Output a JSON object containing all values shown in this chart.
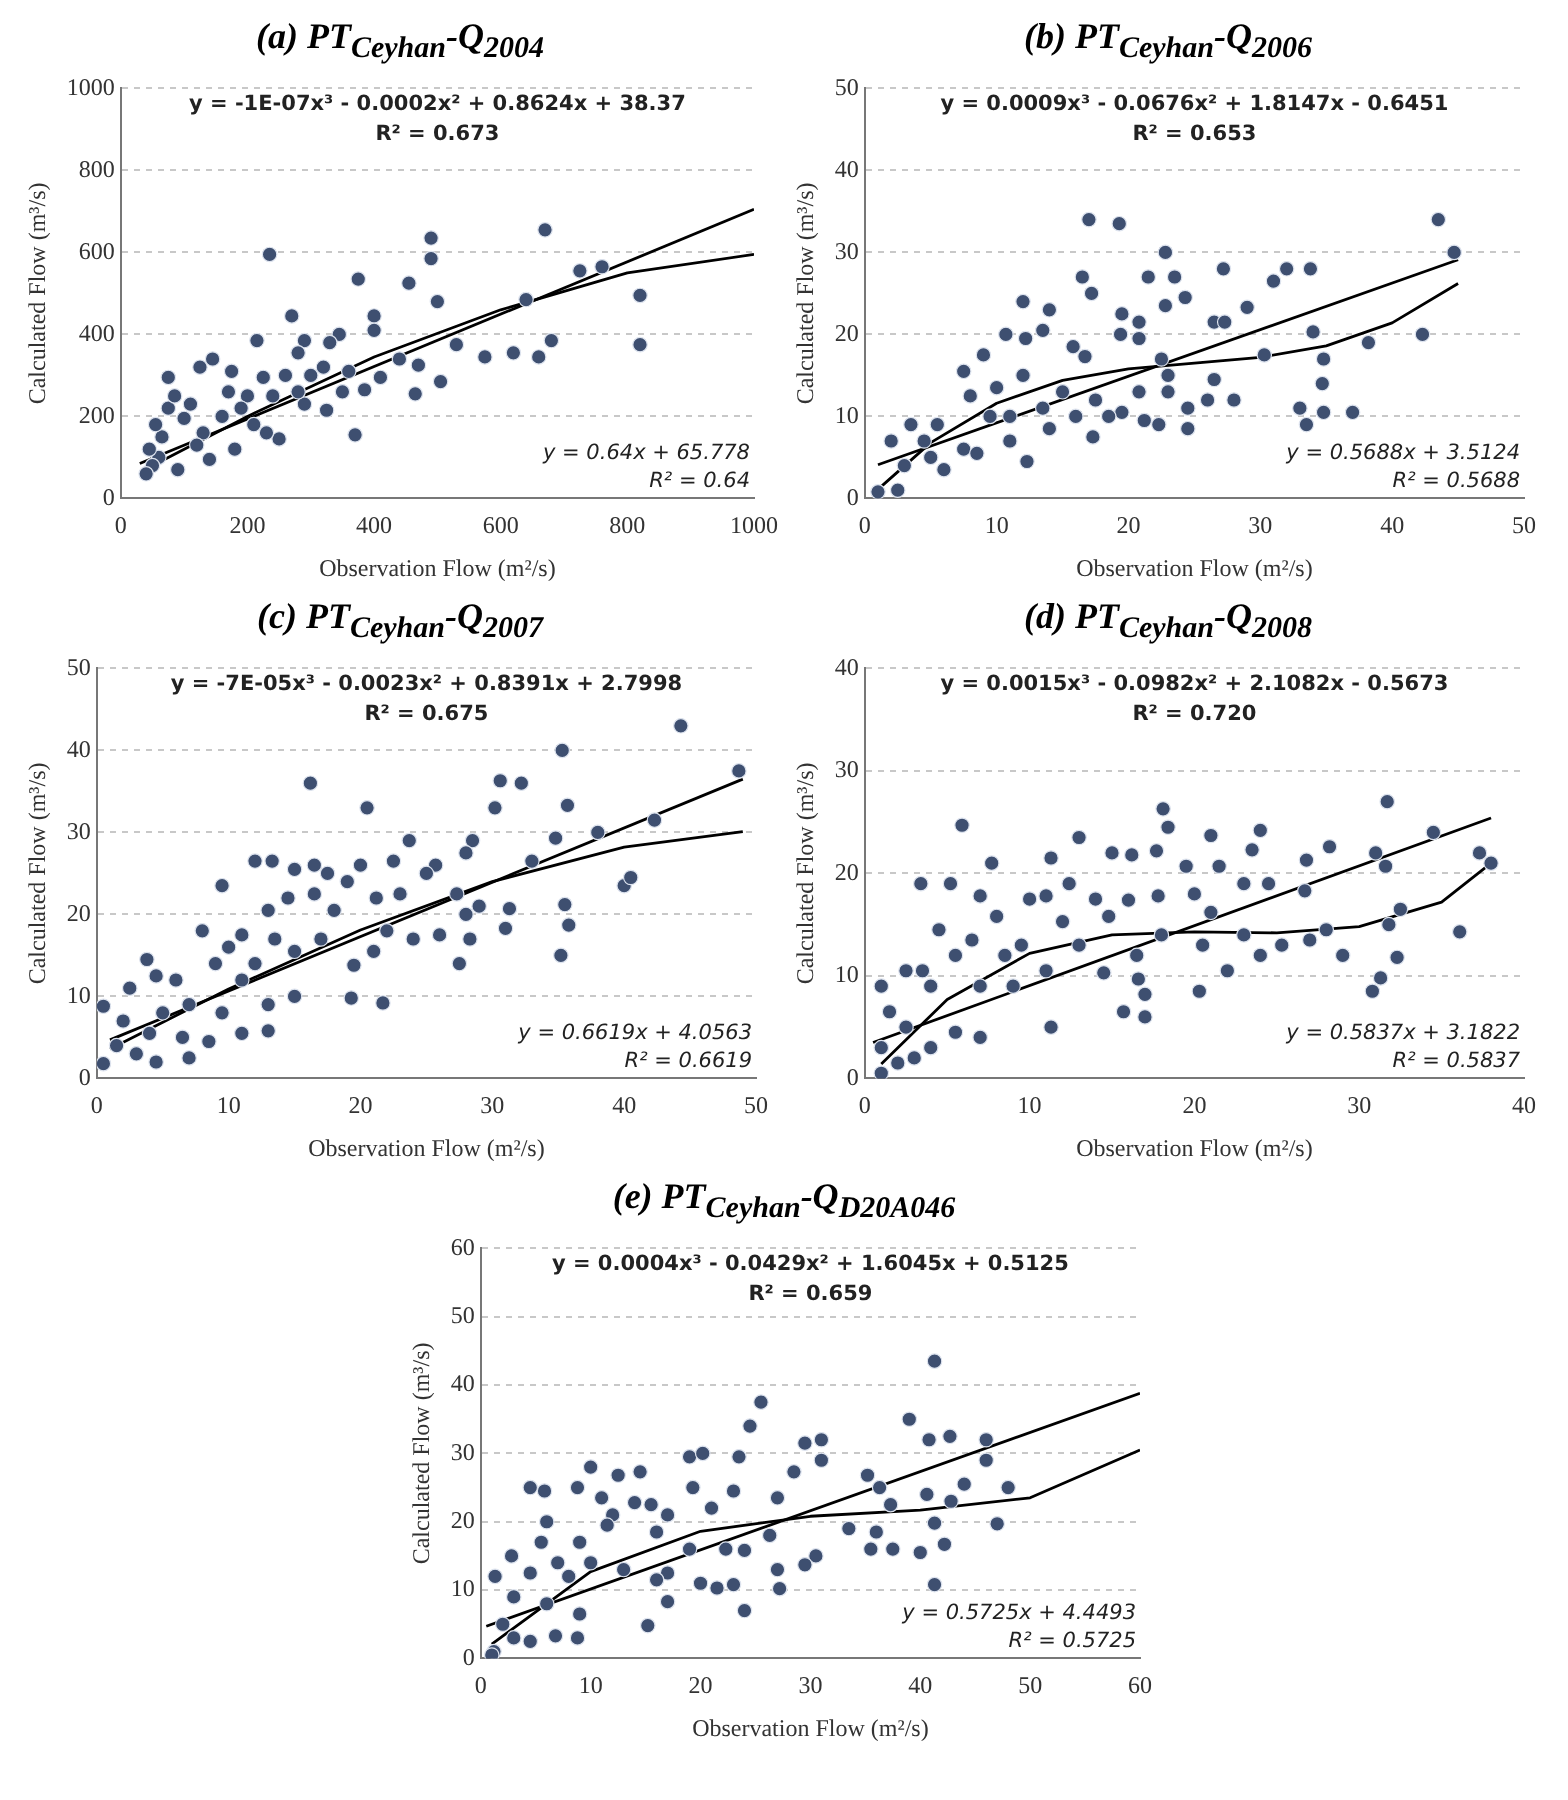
{
  "chart_data": [
    {
      "type": "scatter",
      "title": "(a) PT$_{Ceyhan}$-Q$_{2004}$",
      "xlabel": "Observation Flow (m²/s)",
      "ylabel": "Calculated Flow (m³/s)",
      "xlim": [
        0,
        1000
      ],
      "ylim": [
        0,
        1000
      ],
      "xticks": [
        0,
        200,
        400,
        600,
        800,
        1000
      ],
      "yticks": [
        0,
        200,
        400,
        600,
        800,
        1000
      ],
      "grid": "y",
      "marker": "circle",
      "annotations": [
        "y = -1E-07x³ - 0.0002x² + 0.8624x + 38.37",
        "R² = 0.673",
        "y = 0.64x + 65.778",
        "R² = 0.64"
      ],
      "series": [
        {
          "type": "scatter",
          "color": "#3e4f70",
          "x": [
            235,
            490,
            490,
            670,
            375,
            455,
            500,
            400,
            400,
            270,
            640,
            725,
            760,
            820,
            820,
            680,
            660,
            620,
            575,
            530,
            505,
            465,
            470,
            410,
            385,
            370,
            345,
            325,
            290,
            280,
            290,
            250,
            215,
            225,
            175,
            145,
            140,
            125,
            110,
            100,
            75,
            75,
            65,
            60,
            50,
            45,
            90,
            160,
            180,
            200,
            240,
            260,
            300,
            330,
            350,
            210,
            130,
            170,
            40,
            55,
            85,
            120,
            190,
            230,
            280,
            320,
            440,
            360
          ],
          "values": [
            595,
            635,
            585,
            655,
            535,
            525,
            480,
            445,
            410,
            445,
            485,
            555,
            565,
            495,
            375,
            385,
            345,
            355,
            345,
            375,
            285,
            255,
            325,
            295,
            265,
            155,
            400,
            215,
            385,
            355,
            230,
            145,
            385,
            295,
            310,
            340,
            95,
            320,
            230,
            195,
            295,
            220,
            150,
            100,
            80,
            120,
            70,
            200,
            120,
            250,
            250,
            300,
            300,
            380,
            260,
            180,
            160,
            260,
            60,
            180,
            250,
            130,
            220,
            160,
            260,
            320,
            340,
            310
          ]
        },
        {
          "type": "line",
          "color": "#000000",
          "marker": "none",
          "x": [
            30,
            1000
          ],
          "values": [
            85,
            705
          ]
        },
        {
          "type": "line",
          "color": "#000000",
          "marker": "none",
          "x": [
            30,
            200,
            400,
            600,
            800,
            1000
          ],
          "values": [
            64,
            200,
            345,
            460,
            550,
            595
          ]
        }
      ]
    },
    {
      "type": "scatter",
      "title": "(b) PT$_{Ceyhan}$-Q$_{2006}$",
      "xlabel": "Observation Flow (m²/s)",
      "ylabel": "Calculated Flow (m³/s)",
      "xlim": [
        0,
        50
      ],
      "ylim": [
        0,
        50
      ],
      "xticks": [
        0,
        10,
        20,
        30,
        40,
        50
      ],
      "yticks": [
        0,
        10,
        20,
        30,
        40,
        50
      ],
      "grid": "y",
      "marker": "circle",
      "annotations": [
        "y = 0.0009x³ - 0.0676x² + 1.8147x - 0.6451",
        "R² = 0.653",
        "y = 0.5688x + 3.5124",
        "R² = 0.5688"
      ],
      "series": [
        {
          "type": "scatter",
          "color": "#3e4f70",
          "x": [
            17,
            19.3,
            43.5,
            44.7,
            22.8,
            16.5,
            21.5,
            23.5,
            27.2,
            31,
            32,
            33.8,
            17.2,
            24.3,
            29,
            22.8,
            12,
            14,
            19.5,
            20.8,
            26.5,
            27.3,
            34,
            42.3,
            19.4,
            20.8,
            13.5,
            10.7,
            12.2,
            38.2,
            9,
            7.5,
            15.8,
            16.7,
            22.5,
            30.3,
            34.8,
            12,
            23,
            26.5,
            34.7,
            15,
            20.8,
            23,
            10,
            8,
            17.5,
            26,
            28,
            13.5,
            19.5,
            24.5,
            33,
            34.8,
            37,
            5.5,
            3.5,
            9.5,
            11,
            16,
            18.5,
            21.2,
            22.3,
            33.5,
            14,
            24.5,
            17.3,
            4.5,
            2,
            7.5,
            11,
            12.3,
            6,
            8.5,
            2.5,
            1,
            3,
            5
          ],
          "values": [
            34,
            33.5,
            34,
            30,
            30,
            27,
            27,
            27,
            28,
            26.5,
            28,
            28,
            25,
            24.5,
            23.3,
            23.5,
            24,
            23,
            22.5,
            21.5,
            21.5,
            21.5,
            20.3,
            20,
            20,
            19.5,
            20.5,
            20,
            19.5,
            19,
            17.5,
            15.5,
            18.5,
            17.3,
            17,
            17.5,
            17,
            15,
            15,
            14.5,
            14,
            13,
            13,
            13,
            13.5,
            12.5,
            12,
            12,
            12,
            11,
            10.5,
            11,
            11,
            10.5,
            10.5,
            9,
            9,
            10,
            10,
            10,
            10,
            9.5,
            9,
            9,
            8.5,
            8.5,
            7.5,
            7,
            7,
            6,
            7,
            4.5,
            3.5,
            5.5,
            1,
            0.8,
            4,
            5
          ]
        },
        {
          "type": "line",
          "color": "#000000",
          "marker": "none",
          "x": [
            1,
            45
          ],
          "values": [
            4.1,
            29.1
          ]
        },
        {
          "type": "line",
          "color": "#000000",
          "marker": "none",
          "x": [
            1,
            5,
            10,
            15,
            20,
            25,
            30,
            35,
            40,
            45
          ],
          "values": [
            1.1,
            6.8,
            11.6,
            14.4,
            15.8,
            16.5,
            17.2,
            18.6,
            21.4,
            26.2
          ]
        }
      ]
    },
    {
      "type": "scatter",
      "title": "(c) PT$_{Ceyhan}$-Q$_{2007}$",
      "xlabel": "Observation Flow (m²/s)",
      "ylabel": "Calculated Flow (m³/s)",
      "xlim": [
        0,
        50
      ],
      "ylim": [
        0,
        50
      ],
      "xticks": [
        0,
        10,
        20,
        30,
        40,
        50
      ],
      "yticks": [
        0,
        10,
        20,
        30,
        40,
        50
      ],
      "grid": "y",
      "marker": "circle",
      "annotations": [
        "y = -7E-05x³ - 0.0023x² + 0.8391x + 2.7998",
        "R² = 0.675",
        "y = 0.6619x + 4.0563",
        "R² = 0.6619"
      ],
      "series": [
        {
          "type": "scatter",
          "color": "#3e4f70",
          "x": [
            44.3,
            35.3,
            48.7,
            16.2,
            30.6,
            32.2,
            35.7,
            20.5,
            30.2,
            42.3,
            38,
            28.5,
            23.7,
            34.8,
            28,
            12,
            13.3,
            16.5,
            20,
            22.5,
            25.7,
            33,
            15,
            17.5,
            25,
            9.5,
            19,
            40,
            40.5,
            14.5,
            16.5,
            21.2,
            23,
            27.3,
            29,
            35.5,
            31.3,
            13,
            18,
            28,
            8,
            11,
            22,
            26,
            31,
            35.8,
            13.5,
            17,
            24,
            28.3,
            10,
            15,
            21,
            35.2,
            27.5,
            3.8,
            9,
            12,
            19.5,
            6,
            4.5,
            11,
            15,
            21.7,
            19.3,
            2.5,
            9.5,
            7,
            13,
            5,
            0.5,
            2,
            4,
            6.5,
            11,
            13,
            8.5,
            3,
            4.5,
            7,
            0.5,
            1.5
          ],
          "values": [
            43,
            40,
            37.5,
            36,
            36.3,
            36,
            33.3,
            33,
            33,
            31.5,
            30,
            29,
            29,
            29.3,
            27.5,
            26.5,
            26.5,
            26,
            26,
            26.5,
            26,
            26.5,
            25.5,
            25,
            25,
            23.5,
            24,
            23.5,
            24.5,
            22,
            22.5,
            22,
            22.5,
            22.5,
            21,
            21.2,
            20.7,
            20.5,
            20.5,
            20,
            18,
            17.5,
            18,
            17.5,
            18.3,
            18.7,
            17,
            17,
            17,
            17,
            16,
            15.5,
            15.5,
            15,
            14,
            14.5,
            14,
            14,
            13.8,
            12,
            12.5,
            12,
            10,
            9.2,
            9.8,
            11,
            8,
            9,
            9,
            8,
            8.8,
            7,
            5.5,
            5,
            5.5,
            5.8,
            4.5,
            3,
            2,
            2.5,
            1.8,
            4
          ]
        },
        {
          "type": "line",
          "color": "#000000",
          "marker": "none",
          "x": [
            1,
            49
          ],
          "values": [
            4.7,
            36.5
          ]
        },
        {
          "type": "line",
          "color": "#000000",
          "marker": "none",
          "x": [
            1,
            10,
            20,
            30,
            40,
            49
          ],
          "values": [
            3.6,
            10.9,
            18.1,
            24,
            28.2,
            30.1
          ]
        }
      ]
    },
    {
      "type": "scatter",
      "title": "(d) PT$_{Ceyhan}$-Q$_{2008}$",
      "xlabel": "Observation Flow (m²/s)",
      "ylabel": "Calculated Flow (m³/s)",
      "xlim": [
        0,
        40
      ],
      "ylim": [
        0,
        40
      ],
      "xticks": [
        0,
        10,
        20,
        30,
        40
      ],
      "yticks": [
        0,
        10,
        20,
        30,
        40
      ],
      "grid": "y",
      "marker": "circle",
      "annotations": [
        "y = 0.0015x³ - 0.0982x² + 2.1082x - 0.5673",
        "R² = 0.720",
        "y = 0.5837x + 3.1822",
        "R² = 0.5837"
      ],
      "series": [
        {
          "type": "scatter",
          "color": "#3e4f70",
          "x": [
            31.7,
            18.1,
            5.9,
            18.4,
            24,
            34.5,
            13,
            21,
            23.5,
            28.2,
            37.3,
            31,
            11.3,
            15,
            16.2,
            17.7,
            7.7,
            19.5,
            21.5,
            26.8,
            31.6,
            38,
            3.4,
            5.2,
            12.4,
            23,
            24.5,
            10,
            7,
            14,
            16,
            20,
            26.7,
            11,
            17.8,
            4.5,
            8,
            12,
            14.8,
            21,
            28,
            32.5,
            31.8,
            6.5,
            9.5,
            13,
            18,
            20.5,
            23,
            27,
            5.5,
            8.5,
            16.5,
            24,
            25.3,
            29,
            32.3,
            36.1,
            2.5,
            3.5,
            11,
            14.5,
            22,
            31.3,
            30.8,
            20.3,
            16.6,
            17,
            4,
            1,
            7,
            9,
            15.7,
            17,
            11.3,
            7,
            5.5,
            4,
            2.5,
            1.5,
            1,
            2,
            1,
            3
          ],
          "values": [
            27,
            26.3,
            24.7,
            24.5,
            24.2,
            24,
            23.5,
            23.7,
            22.3,
            22.6,
            22,
            22,
            21.5,
            22,
            21.8,
            22.2,
            21,
            20.7,
            20.7,
            21.3,
            20.7,
            21,
            19,
            19,
            19,
            19,
            19,
            17.5,
            17.8,
            17.5,
            17.4,
            18,
            18.3,
            17.8,
            17.8,
            14.5,
            15.8,
            15.3,
            15.8,
            16.2,
            14.5,
            16.5,
            15,
            13.5,
            13,
            13,
            14,
            13,
            14,
            13.5,
            12,
            12,
            12,
            12,
            13,
            12,
            11.8,
            14.3,
            10.5,
            10.5,
            10.5,
            10.3,
            10.5,
            9.8,
            8.5,
            8.5,
            9.7,
            8.2,
            9,
            9,
            9,
            9,
            6.5,
            6,
            5,
            4,
            4.5,
            3,
            5,
            6.5,
            3,
            1.5,
            0.5,
            2
          ]
        },
        {
          "type": "line",
          "color": "#000000",
          "marker": "none",
          "x": [
            0.5,
            38
          ],
          "values": [
            3.5,
            25.4
          ]
        },
        {
          "type": "line",
          "color": "#000000",
          "marker": "none",
          "x": [
            1,
            5,
            10,
            15,
            20,
            25,
            30,
            35,
            38
          ],
          "values": [
            1.4,
            7.7,
            12.2,
            14,
            14.3,
            14.2,
            14.8,
            17.2,
            21
          ]
        }
      ]
    },
    {
      "type": "scatter",
      "title": "(e) PT$_{Ceyhan}$-Q$_{D20A046}$",
      "xlabel": "Observation Flow (m²/s)",
      "ylabel": "Calculated Flow (m³/s)",
      "xlim": [
        0,
        60
      ],
      "ylim": [
        0,
        60
      ],
      "xticks": [
        0,
        10,
        20,
        30,
        40,
        50,
        60
      ],
      "yticks": [
        0,
        10,
        20,
        30,
        40,
        50,
        60
      ],
      "grid": "y",
      "marker": "circle",
      "annotations": [
        "y = 0.0004x³ - 0.0429x² + 1.6045x + 0.5125",
        "R² = 0.659",
        "y = 0.5725x + 4.4493",
        "R² = 0.5725"
      ],
      "series": [
        {
          "type": "scatter",
          "color": "#3e4f70",
          "x": [
            41.3,
            25.5,
            39,
            24.5,
            29.5,
            31,
            40.8,
            42.7,
            46,
            19,
            20.2,
            23.5,
            31,
            46,
            28.5,
            10,
            12.5,
            14.5,
            35.2,
            44,
            4.5,
            5.8,
            8.8,
            19.3,
            23,
            27,
            36.3,
            48,
            11,
            14,
            21,
            37.3,
            40.6,
            42.8,
            12,
            15.5,
            17,
            2.8,
            5.5,
            6,
            9,
            11.5,
            16,
            26.3,
            33.5,
            36,
            41.3,
            47,
            19,
            22.3,
            24,
            30.5,
            35.5,
            37.5,
            40,
            42.2,
            7,
            10,
            13,
            17,
            27,
            29.5,
            16,
            20,
            21.5,
            23,
            27.2,
            41.3,
            1.3,
            4.5,
            8,
            17,
            24,
            3,
            6,
            9,
            15.2,
            2,
            4.5,
            6.8,
            8.8,
            1.2,
            3,
            1
          ],
          "values": [
            43.5,
            37.5,
            35,
            34,
            31.5,
            32,
            32,
            32.5,
            32,
            29.5,
            30,
            29.5,
            29,
            29,
            27.3,
            28,
            26.8,
            27.3,
            26.8,
            25.5,
            25,
            24.5,
            25,
            25,
            24.5,
            23.5,
            25,
            25,
            23.5,
            22.8,
            22,
            22.5,
            24,
            23,
            21,
            22.5,
            21,
            15,
            17,
            20,
            17,
            19.5,
            18.5,
            18,
            19,
            18.5,
            19.8,
            19.7,
            16,
            16,
            15.8,
            15,
            16,
            16,
            15.5,
            16.7,
            14,
            14,
            13,
            12.5,
            13,
            13.7,
            11.5,
            11,
            10.3,
            10.8,
            10.2,
            10.8,
            12,
            12.5,
            12,
            8.3,
            7,
            9,
            8,
            6.5,
            4.8,
            5,
            2.5,
            3.3,
            3,
            1,
            3,
            0.5
          ]
        },
        {
          "type": "line",
          "color": "#000000",
          "marker": "none",
          "x": [
            0.5,
            60
          ],
          "values": [
            4.7,
            38.8
          ]
        },
        {
          "type": "line",
          "color": "#000000",
          "marker": "none",
          "x": [
            1,
            10,
            20,
            30,
            40,
            50,
            60
          ],
          "values": [
            2.1,
            12.7,
            18.6,
            20.8,
            21.7,
            23.5,
            30.5
          ]
        }
      ]
    }
  ]
}
